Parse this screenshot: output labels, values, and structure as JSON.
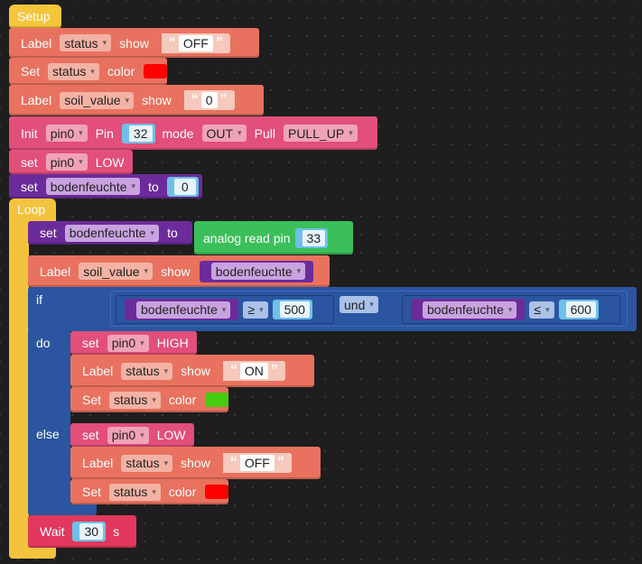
{
  "setup": {
    "hat_label": "Setup",
    "label1": {
      "kw": "Label",
      "target": "status",
      "kw2": "show",
      "text": "OFF"
    },
    "set1": {
      "kw": "Set",
      "target": "status",
      "kw2": "color",
      "color": "#ff0000"
    },
    "label2": {
      "kw": "Label",
      "target": "soil_value",
      "kw2": "show",
      "text": "0"
    },
    "init": {
      "kw": "Init",
      "pin": "pin0",
      "kw2": "Pin",
      "num": "32",
      "kw3": "mode",
      "mode": "OUT",
      "kw4": "Pull",
      "pull": "PULL_UP"
    },
    "setpin": {
      "kw": "set",
      "pin": "pin0",
      "level": "LOW"
    },
    "setvar": {
      "kw": "set",
      "var": "bodenfeuchte",
      "kw2": "to",
      "value": "0"
    }
  },
  "loop": {
    "hat_label": "Loop",
    "setvar": {
      "kw": "set",
      "var": "bodenfeuchte",
      "kw2": "to",
      "read_label": "analog read pin",
      "pin_num": "33"
    },
    "label": {
      "kw": "Label",
      "target": "soil_value",
      "kw2": "show",
      "var": "bodenfeuchte"
    },
    "if": {
      "if_kw": "if",
      "do_kw": "do",
      "else_kw": "else",
      "cond_left": {
        "var": "bodenfeuchte",
        "op": "≥",
        "value": "500"
      },
      "logic_op": "und",
      "cond_right": {
        "var": "bodenfeuchte",
        "op": "≤",
        "value": "600"
      },
      "do_setpin": {
        "kw": "set",
        "pin": "pin0",
        "level": "HIGH"
      },
      "do_label": {
        "kw": "Label",
        "target": "status",
        "kw2": "show",
        "text": "ON"
      },
      "do_color": {
        "kw": "Set",
        "target": "status",
        "kw2": "color",
        "color": "#44cc11"
      },
      "else_setpin": {
        "kw": "set",
        "pin": "pin0",
        "level": "LOW"
      },
      "else_label": {
        "kw": "Label",
        "target": "status",
        "kw2": "show",
        "text": "OFF"
      },
      "else_color": {
        "kw": "Set",
        "target": "status",
        "kw2": "color",
        "color": "#ff0000"
      }
    },
    "wait": {
      "kw": "Wait",
      "value": "30",
      "unit": "s"
    }
  },
  "quote_open": "“",
  "quote_close": "”"
}
